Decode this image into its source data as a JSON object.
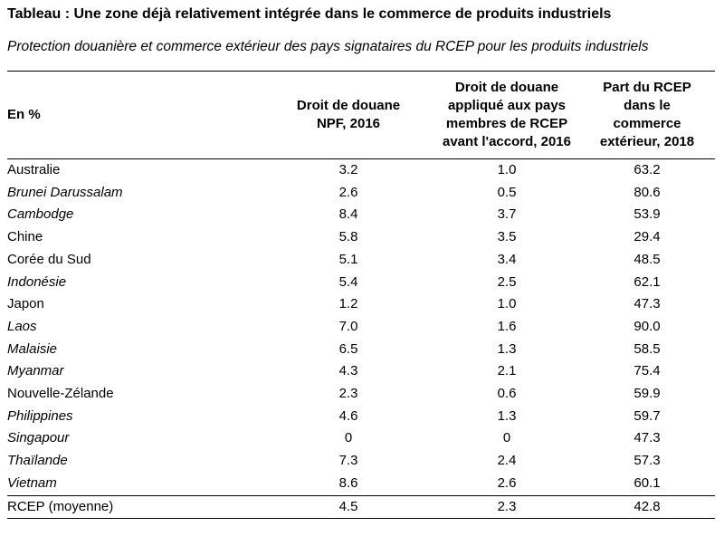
{
  "title": "Tableau : Une zone déjà relativement intégrée dans le commerce de produits industriels",
  "subtitle": "Protection douanière et commerce extérieur des pays signataires du RCEP pour les produits industriels",
  "headers": {
    "label": "En %",
    "col1": [
      "Droit de douane",
      "NPF, 2016"
    ],
    "col2": [
      "Droit de douane",
      "appliqué aux pays",
      "membres de RCEP",
      "avant l'accord, 2016"
    ],
    "col3": [
      "Part du RCEP",
      "dans le",
      "commerce",
      "extérieur, 2018"
    ]
  },
  "rows": [
    {
      "country": "Australie",
      "italic": false,
      "npf": "3.2",
      "rcep_tariff": "1.0",
      "share": "63.2"
    },
    {
      "country": "Brunei Darussalam",
      "italic": true,
      "npf": "2.6",
      "rcep_tariff": "0.5",
      "share": "80.6"
    },
    {
      "country": "Cambodge",
      "italic": true,
      "npf": "8.4",
      "rcep_tariff": "3.7",
      "share": "53.9"
    },
    {
      "country": "Chine",
      "italic": false,
      "npf": "5.8",
      "rcep_tariff": "3.5",
      "share": "29.4"
    },
    {
      "country": "Corée du Sud",
      "italic": false,
      "npf": "5.1",
      "rcep_tariff": "3.4",
      "share": "48.5"
    },
    {
      "country": "Indonésie",
      "italic": true,
      "npf": "5.4",
      "rcep_tariff": "2.5",
      "share": "62.1"
    },
    {
      "country": "Japon",
      "italic": false,
      "npf": "1.2",
      "rcep_tariff": "1.0",
      "share": "47.3"
    },
    {
      "country": "Laos",
      "italic": true,
      "npf": "7.0",
      "rcep_tariff": "1.6",
      "share": "90.0"
    },
    {
      "country": "Malaisie",
      "italic": true,
      "npf": "6.5",
      "rcep_tariff": "1.3",
      "share": "58.5"
    },
    {
      "country": "Myanmar",
      "italic": true,
      "npf": "4.3",
      "rcep_tariff": "2.1",
      "share": "75.4"
    },
    {
      "country": "Nouvelle-Zélande",
      "italic": false,
      "npf": "2.3",
      "rcep_tariff": "0.6",
      "share": "59.9"
    },
    {
      "country": "Philippines",
      "italic": true,
      "npf": "4.6",
      "rcep_tariff": "1.3",
      "share": "59.7"
    },
    {
      "country": "Singapour",
      "italic": true,
      "npf": "0",
      "rcep_tariff": "0",
      "share": "47.3"
    },
    {
      "country": "Thaïlande",
      "italic": true,
      "npf": "7.3",
      "rcep_tariff": "2.4",
      "share": "57.3"
    },
    {
      "country": "Vietnam",
      "italic": true,
      "npf": "8.6",
      "rcep_tariff": "2.6",
      "share": "60.1"
    }
  ],
  "average": {
    "country": "RCEP (moyenne)",
    "npf": "4.5",
    "rcep_tariff": "2.3",
    "share": "42.8"
  }
}
